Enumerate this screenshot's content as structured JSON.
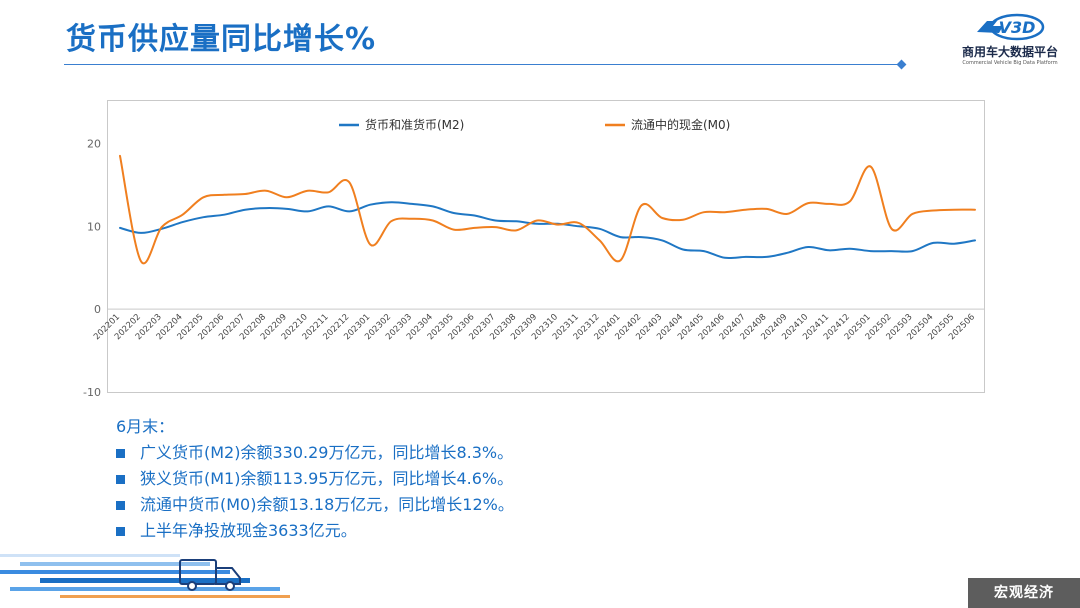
{
  "header": {
    "title": "货币供应量同比增长%",
    "logo_mark": "V3D",
    "logo_name": "商用车大数据平台",
    "logo_sub": "Commercial Vehicle Big Data Platform"
  },
  "chart_data": {
    "type": "line",
    "legend_position": "top-center",
    "grid": false,
    "ylim": [
      -10,
      25
    ],
    "yticks": [
      -10,
      0,
      10,
      20
    ],
    "x": [
      "202201",
      "202202",
      "202203",
      "202204",
      "202205",
      "202206",
      "202207",
      "202208",
      "202209",
      "202210",
      "202211",
      "202212",
      "202301",
      "202302",
      "202303",
      "202304",
      "202305",
      "202306",
      "202307",
      "202308",
      "202309",
      "202310",
      "202311",
      "202312",
      "202401",
      "202402",
      "202403",
      "202404",
      "202405",
      "202406",
      "202407",
      "202408",
      "202409",
      "202410",
      "202411",
      "202412",
      "202501",
      "202502",
      "202503",
      "202504",
      "202505",
      "202506"
    ],
    "series": [
      {
        "name": "货币和准货币(M2)",
        "color": "#1f77c4",
        "values": [
          9.8,
          9.2,
          9.7,
          10.5,
          11.1,
          11.4,
          12.0,
          12.2,
          12.1,
          11.8,
          12.4,
          11.8,
          12.6,
          12.9,
          12.7,
          12.4,
          11.6,
          11.3,
          10.7,
          10.6,
          10.3,
          10.3,
          10.0,
          9.7,
          8.7,
          8.7,
          8.3,
          7.2,
          7.0,
          6.2,
          6.3,
          6.3,
          6.8,
          7.5,
          7.1,
          7.3,
          7.0,
          7.0,
          7.0,
          8.0,
          7.9,
          8.3
        ]
      },
      {
        "name": "流通中的现金(M0)",
        "color": "#f07f1f",
        "values": [
          18.5,
          5.8,
          9.9,
          11.4,
          13.5,
          13.8,
          13.9,
          14.3,
          13.5,
          14.3,
          14.1,
          15.3,
          7.8,
          10.6,
          10.9,
          10.7,
          9.6,
          9.8,
          9.9,
          9.5,
          10.7,
          10.2,
          10.4,
          8.3,
          5.9,
          12.5,
          11.0,
          10.8,
          11.7,
          11.7,
          12.0,
          12.1,
          11.5,
          12.8,
          12.7,
          13.0,
          17.2,
          9.7,
          11.5,
          11.9,
          12.0,
          12.0
        ]
      }
    ]
  },
  "notes": {
    "heading": "6月末：",
    "items": [
      "广义货币(M2)余额330.29万亿元，同比增长8.3%。",
      "狭义货币(M1)余额113.95万亿元，同比增长4.6%。",
      "流通中货币(M0)余额13.18万亿元，同比增长12%。",
      "上半年净投放现金3633亿元。"
    ]
  },
  "footer": {
    "tag": "宏观经济"
  },
  "colors": {
    "accent": "#1a6fc4",
    "tag_bg": "#5d5d5d"
  }
}
